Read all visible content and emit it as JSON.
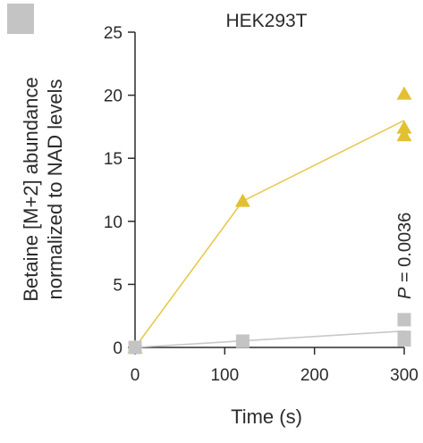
{
  "chart_data": {
    "type": "scatter",
    "title": "HEK293T",
    "xlabel": "Time (s)",
    "ylabel_lines": [
      "Betaine [M+2] abundance",
      "normalized to NAD levels"
    ],
    "xlim": [
      0,
      300
    ],
    "ylim": [
      0,
      25
    ],
    "xticks": [
      "0",
      "100",
      "200",
      "300"
    ],
    "yticks": [
      "0",
      "5",
      "10",
      "15",
      "20",
      "25"
    ],
    "annotation": {
      "italic": "P",
      "text": " = 0.0036"
    },
    "legend_swatch_color": "#c4c4c4",
    "series": [
      {
        "marker": "triangle",
        "color": "#e2c032",
        "line_color": "#e8c94a",
        "points": [
          [
            0,
            0
          ],
          [
            120,
            11.6
          ],
          [
            300,
            20.1
          ],
          [
            300,
            17.4
          ],
          [
            300,
            16.8
          ]
        ],
        "line": [
          [
            0,
            0
          ],
          [
            120,
            11.6
          ],
          [
            300,
            18.0
          ]
        ]
      },
      {
        "marker": "square",
        "color": "#c4c4c4",
        "line_color": "#c8c8c8",
        "points": [
          [
            0,
            0
          ],
          [
            120,
            0.5
          ],
          [
            300,
            2.2
          ],
          [
            300,
            0.8
          ],
          [
            300,
            0.6
          ]
        ],
        "line": [
          [
            0,
            0
          ],
          [
            300,
            1.3
          ]
        ]
      }
    ]
  }
}
